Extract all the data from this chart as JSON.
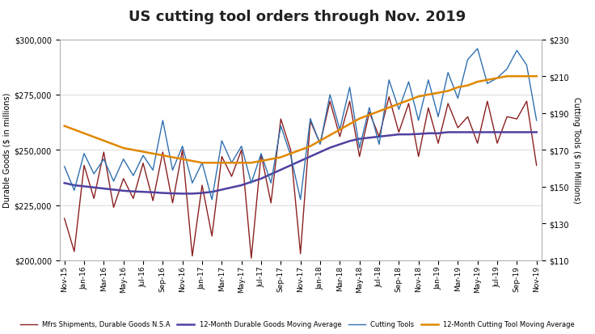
{
  "title": "US cutting tool orders through Nov. 2019",
  "ylabel_left": "Durable Goods ($ in millions)",
  "ylabel_right": "Cutting Tools ($ in Millions)",
  "ylim_left": [
    200000,
    300000
  ],
  "ylim_right": [
    110,
    230
  ],
  "yticks_left": [
    200000,
    225000,
    250000,
    275000,
    300000
  ],
  "yticks_right": [
    110,
    130,
    150,
    170,
    190,
    210,
    230
  ],
  "x_labels": [
    "Nov-15",
    "Jan-16",
    "Mar-16",
    "May-16",
    "Jul-16",
    "Sep-16",
    "Nov-16",
    "Jan-17",
    "Mar-17",
    "May-17",
    "Jul-17",
    "Sep-17",
    "Nov-17",
    "Jan-18",
    "Mar-18",
    "May-18",
    "Jul-18",
    "Sep-18",
    "Nov-18",
    "Jan-19",
    "Mar-19",
    "May-19",
    "Jul-19",
    "Sep-19",
    "Nov-19"
  ],
  "x_tick_positions": [
    0,
    2,
    4,
    6,
    8,
    10,
    12,
    14,
    16,
    18,
    20,
    22,
    24,
    26,
    28,
    30,
    32,
    34,
    36,
    38,
    40,
    42,
    44,
    46,
    48
  ],
  "durable_goods": [
    219000,
    204000,
    243000,
    228000,
    249000,
    224000,
    237000,
    228000,
    244000,
    227000,
    249000,
    226000,
    250000,
    202000,
    234000,
    211000,
    247000,
    238000,
    250000,
    201000,
    248000,
    226000,
    264000,
    250000,
    203000,
    263000,
    253000,
    272000,
    256000,
    272000,
    247000,
    267000,
    256000,
    274000,
    258000,
    271000,
    247000,
    269000,
    253000,
    271000,
    260000,
    265000,
    253000,
    272000,
    253000,
    265000,
    264000,
    272000,
    243000
  ],
  "durable_goods_ma": [
    235000,
    234000,
    233500,
    233000,
    232500,
    232000,
    231500,
    231200,
    231000,
    230800,
    230500,
    230300,
    230200,
    230200,
    230500,
    231000,
    232000,
    233000,
    234000,
    235500,
    237000,
    239000,
    241000,
    243000,
    245000,
    247000,
    249000,
    251000,
    252500,
    254000,
    255000,
    255500,
    256000,
    256500,
    257000,
    257000,
    257200,
    257500,
    257500,
    258000,
    258000,
    258000,
    258000,
    258000,
    258000,
    258000,
    258000,
    258000,
    258000
  ],
  "cutting_tools": [
    161,
    148,
    168,
    157,
    165,
    153,
    165,
    156,
    167,
    159,
    186,
    159,
    172,
    152,
    163,
    143,
    175,
    163,
    172,
    152,
    168,
    152,
    183,
    167,
    143,
    187,
    173,
    200,
    181,
    204,
    171,
    193,
    173,
    208,
    192,
    207,
    186,
    208,
    188,
    212,
    198,
    219,
    225,
    206,
    209,
    214,
    224,
    216,
    186
  ],
  "cutting_tools_ma": [
    183,
    181,
    179,
    177,
    175,
    173,
    171,
    170,
    169,
    168,
    167,
    166,
    165,
    164,
    163,
    163,
    163,
    163,
    163,
    163,
    164,
    165,
    166,
    168,
    170,
    172,
    175,
    178,
    181,
    184,
    187,
    189,
    191,
    193,
    195,
    197,
    199,
    200,
    201,
    202,
    204,
    205,
    207,
    208,
    209,
    210,
    210,
    210,
    210
  ],
  "color_durable": "#8B2020",
  "color_durable_ma": "#5040A0",
  "color_cutting": "#3070B0",
  "color_cutting_ma": "#E08800",
  "legend_labels": [
    "Mfrs Shipments, Durable Goods N.S.A",
    "12-Month Durable Goods Moving Average",
    "Cutting Tools",
    "12-Month Cutting Tool Moving Average"
  ],
  "background_color": "#ffffff",
  "plot_bg": "#f5f5f5"
}
